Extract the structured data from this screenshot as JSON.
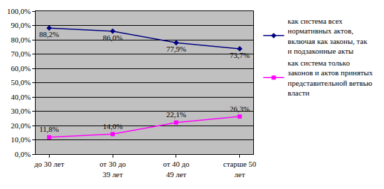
{
  "chart_data": {
    "type": "line",
    "categories": [
      "до 30 лет",
      "от 30 до 39 лет",
      "от 40 до 49 лет",
      "старше 50 лет"
    ],
    "series": [
      {
        "name": "как система всех нормативных актов, включая как законы, так и подзаконные акты",
        "color": "#000080",
        "marker": "diamond",
        "values": [
          88.2,
          86.0,
          77.9,
          73.7
        ],
        "value_labels": [
          "88,2%",
          "86,0%",
          "77,9%",
          "73,7%"
        ]
      },
      {
        "name": "как система только законов и актов принятых представительной ветвью власти",
        "color": "#ff00ff",
        "marker": "square",
        "values": [
          11.8,
          14.0,
          22.1,
          26.3
        ],
        "value_labels": [
          "11,8%",
          "14,0%",
          "22,1%",
          "26,3%"
        ]
      }
    ],
    "ylim": [
      0,
      100
    ],
    "yticks": [
      {
        "value": 0,
        "label": "0,0%"
      },
      {
        "value": 10,
        "label": "10,0%"
      },
      {
        "value": 20,
        "label": "20,0%"
      },
      {
        "value": 30,
        "label": "30,0%"
      },
      {
        "value": 40,
        "label": "40,0%"
      },
      {
        "value": 50,
        "label": "50,0%"
      },
      {
        "value": 60,
        "label": "60,0%"
      },
      {
        "value": 70,
        "label": "70,0%"
      },
      {
        "value": 80,
        "label": "80,0%"
      },
      {
        "value": 90,
        "label": "90,0%"
      },
      {
        "value": 100,
        "label": "100,0%"
      }
    ],
    "grid": true,
    "legend": "right",
    "data_labels": true
  }
}
